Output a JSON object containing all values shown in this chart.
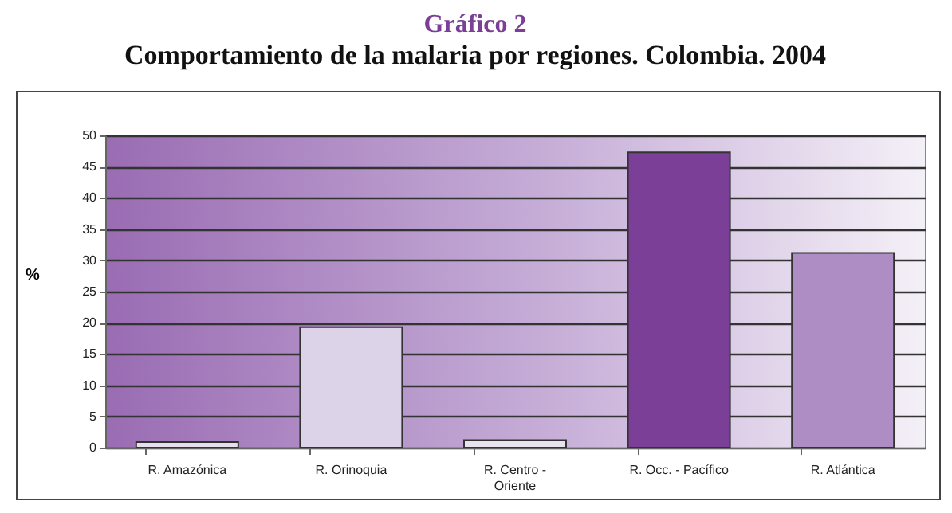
{
  "chart_data": {
    "type": "bar",
    "title": "Gráfico 2",
    "subtitle": "Comportamiento de la malaria por regiones. Colombia. 2004",
    "ylabel": "%",
    "categories": [
      "R. Amazónica",
      "R. Orinoquia",
      "R. Centro - Oriente",
      "R. Occ. - Pacífico",
      "R. Atlántica"
    ],
    "values": [
      0.9,
      19.3,
      1.2,
      47.3,
      31.2
    ],
    "colors": [
      "#e6dfee",
      "#ddd3e8",
      "#e8e4ee",
      "#7b3f98",
      "#ad8dc4"
    ],
    "ylim": [
      0,
      50
    ],
    "yticks": [
      0,
      5,
      10,
      15,
      20,
      25,
      30,
      35,
      40,
      45,
      50
    ],
    "grid": "y"
  }
}
